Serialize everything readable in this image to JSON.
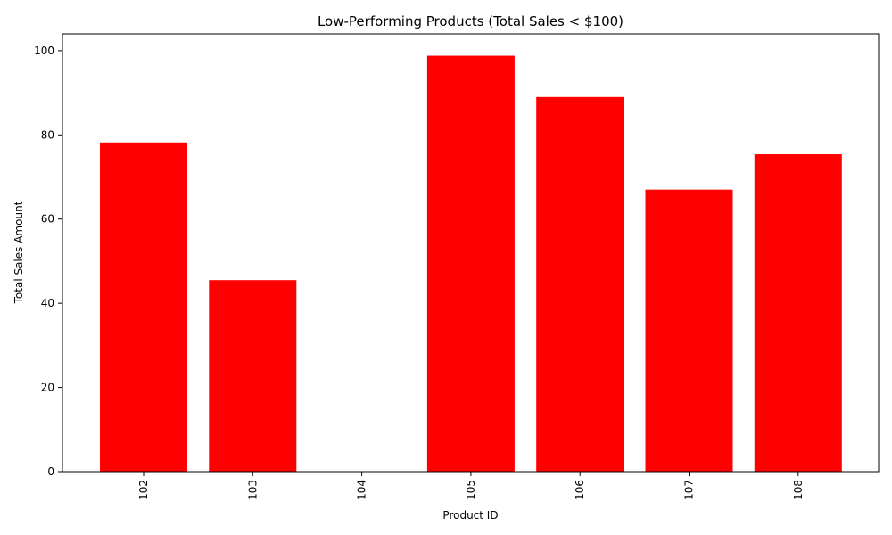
{
  "chart_data": {
    "type": "bar",
    "title": "Low-Performing Products (Total Sales < $100)",
    "xlabel": "Product ID",
    "ylabel": "Total Sales Amount",
    "categories": [
      "102",
      "103",
      "104",
      "105",
      "106",
      "107",
      "108"
    ],
    "values": [
      78.2,
      45.5,
      0,
      98.8,
      89.0,
      67.0,
      75.4
    ],
    "ylim": [
      0,
      104
    ],
    "yticks": [
      0,
      20,
      40,
      60,
      80,
      100
    ],
    "ytick_labels": [
      "0",
      "20",
      "40",
      "60",
      "80",
      "100"
    ],
    "bar_color": "#ff0000",
    "grid": false,
    "legend": "none",
    "xtick_rotation": "vertical"
  }
}
